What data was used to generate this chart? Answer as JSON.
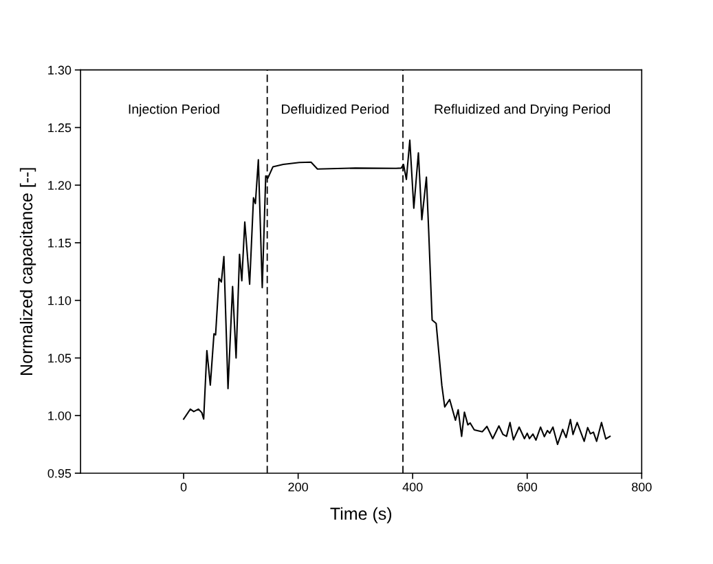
{
  "chart_data": {
    "type": "line",
    "xlabel": "Time (s)",
    "ylabel": "Normalized capacitance [--]",
    "xlim": [
      -180,
      800
    ],
    "xticks": [
      0,
      200,
      400,
      600,
      800
    ],
    "ylim": [
      0.95,
      1.3
    ],
    "yticks": [
      {
        "value": 0.95,
        "label": "0.95"
      },
      {
        "value": 1.0,
        "label": "1.00"
      },
      {
        "value": 1.05,
        "label": "1.05"
      },
      {
        "value": 1.1,
        "label": "1.10"
      },
      {
        "value": 1.15,
        "label": "1.15"
      },
      {
        "value": 1.2,
        "label": "1.20"
      },
      {
        "value": 1.25,
        "label": "1.25"
      },
      {
        "value": 1.3,
        "label": "1.30"
      }
    ],
    "grid": false,
    "legend": false,
    "marker": "none",
    "line_style": "solid",
    "ref_lines": [
      {
        "axis": "x",
        "value": 146,
        "color": "#000000",
        "line_style": "dashed"
      },
      {
        "axis": "x",
        "value": 383,
        "color": "#000000",
        "line_style": "dashed"
      }
    ],
    "annotations": [
      "Injection Period",
      "Defluidized Period",
      "Refluidized and Drying Period"
    ],
    "series": [
      {
        "color": "#000000",
        "x": [
          0,
          11.7,
          17.7,
          25.7,
          31.7,
          35,
          40.6,
          46.6,
          53,
          55.8,
          61.8,
          65.9,
          70.3,
          77.5,
          85.5,
          91.6,
          97.6,
          101.6,
          106.8,
          115.3,
          122,
          125.3,
          130.5,
          137.3,
          143.4,
          147,
          156,
          174,
          202,
          222.5,
          233.7,
          300,
          371,
          380,
          384,
          389,
          395,
          402,
          410,
          416,
          424,
          428,
          434,
          441,
          451,
          456,
          464.6,
          474.7,
          479.5,
          485.5,
          490.4,
          496.4,
          500.4,
          507.6,
          521.7,
          529.7,
          539.8,
          550.6,
          557.8,
          563.9,
          570,
          576,
          586,
          595.2,
          600,
          604,
          610,
          615.3,
          623.3,
          630,
          635.3,
          639.4,
          645,
          653,
          662,
          668,
          675.5,
          680,
          687.3,
          699.6,
          705.6,
          710.4,
          715.7,
          721.3,
          729.8,
          737.3,
          744.6
        ],
        "values": [
          0.997,
          1.0056,
          1.0035,
          1.0056,
          1.0026,
          0.997,
          1.0563,
          1.0265,
          1.071,
          1.07,
          1.119,
          1.116,
          1.138,
          1.0235,
          1.112,
          1.05,
          1.14,
          1.117,
          1.168,
          1.114,
          1.189,
          1.184,
          1.222,
          1.111,
          1.208,
          1.206,
          1.216,
          1.218,
          1.2197,
          1.22,
          1.214,
          1.2148,
          1.2146,
          1.2148,
          1.218,
          1.205,
          1.239,
          1.18,
          1.228,
          1.17,
          1.207,
          1.16,
          1.083,
          1.08,
          1.026,
          1.0075,
          1.014,
          0.996,
          1.005,
          0.982,
          1.003,
          0.992,
          0.9936,
          0.9876,
          0.986,
          0.9906,
          0.98,
          0.991,
          0.9836,
          0.982,
          0.994,
          0.979,
          0.99,
          0.98,
          0.9847,
          0.98,
          0.984,
          0.9787,
          0.99,
          0.9817,
          0.987,
          0.9847,
          0.99,
          0.975,
          0.988,
          0.981,
          0.9966,
          0.9836,
          0.994,
          0.9777,
          0.9896,
          0.9842,
          0.9856,
          0.9777,
          0.994,
          0.9797,
          0.982
        ]
      }
    ]
  }
}
